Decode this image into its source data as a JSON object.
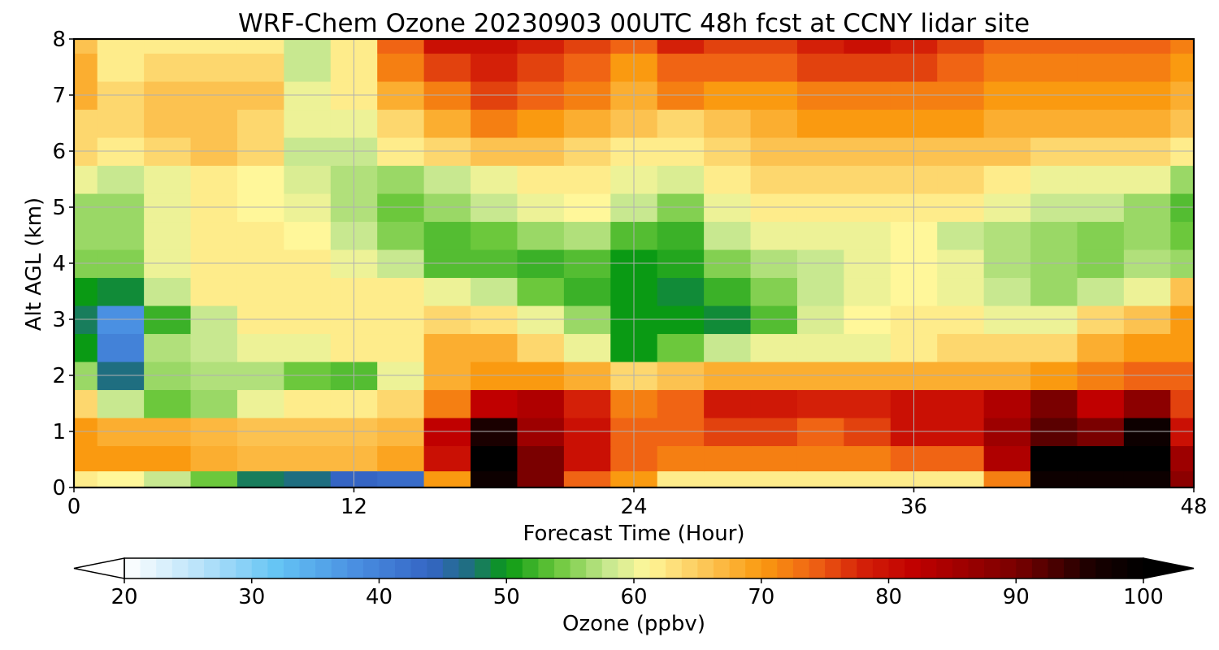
{
  "chart_data": {
    "type": "heatmap",
    "title": "WRF-Chem Ozone  20230903 00UTC 48h fcst at CCNY lidar site",
    "xlabel": "Forecast Time (Hour)",
    "ylabel": "Alt AGL (km)",
    "xlim": [
      0,
      48
    ],
    "ylim": [
      0,
      8
    ],
    "x_ticks": [
      0,
      12,
      24,
      36,
      48
    ],
    "y_ticks": [
      0,
      1,
      2,
      3,
      4,
      5,
      6,
      7,
      8
    ],
    "grid": true,
    "x": [
      0,
      2,
      4,
      6,
      8,
      10,
      12,
      14,
      16,
      18,
      20,
      22,
      24,
      26,
      28,
      30,
      32,
      34,
      36,
      38,
      40,
      42,
      44,
      46,
      48
    ],
    "y": [
      0.1,
      0.5,
      1,
      1.5,
      2,
      2.5,
      3,
      3.5,
      4,
      4.5,
      5,
      5.5,
      6,
      6.5,
      7,
      7.5,
      8
    ],
    "z": [
      [
        62,
        61,
        58,
        54,
        48,
        47,
        44,
        43,
        70,
        98,
        90,
        74,
        70,
        62,
        62,
        62,
        62,
        62,
        62,
        62,
        72,
        98,
        98,
        98,
        88
      ],
      [
        70,
        70,
        70,
        68,
        67,
        67,
        67,
        69,
        80,
        100,
        90,
        80,
        74,
        72,
        72,
        72,
        72,
        72,
        74,
        74,
        84,
        100,
        100,
        100,
        86
      ],
      [
        70,
        68,
        68,
        67,
        66,
        66,
        66,
        67,
        82,
        96,
        86,
        80,
        74,
        74,
        76,
        76,
        74,
        76,
        80,
        80,
        86,
        92,
        90,
        98,
        80
      ],
      [
        64,
        58,
        54,
        56,
        60,
        62,
        62,
        64,
        72,
        82,
        84,
        78,
        72,
        74,
        79,
        79,
        78,
        78,
        80,
        80,
        84,
        90,
        82,
        88,
        76
      ],
      [
        56,
        47,
        56,
        57,
        57,
        54,
        53,
        60,
        68,
        70,
        70,
        68,
        64,
        66,
        68,
        68,
        68,
        68,
        68,
        68,
        68,
        70,
        72,
        74,
        74
      ],
      [
        50,
        40,
        57,
        58,
        60,
        60,
        62,
        62,
        68,
        68,
        64,
        60,
        50,
        54,
        58,
        60,
        60,
        60,
        62,
        64,
        64,
        64,
        68,
        70,
        70
      ],
      [
        48,
        38,
        52,
        58,
        62,
        62,
        62,
        62,
        64,
        63,
        60,
        56,
        50,
        50,
        49,
        53,
        59,
        61,
        62,
        62,
        60,
        60,
        64,
        66,
        70
      ],
      [
        50,
        49,
        58,
        62,
        62,
        62,
        62,
        62,
        60,
        58,
        54,
        52,
        50,
        49,
        52,
        55,
        58,
        60,
        61,
        60,
        58,
        56,
        58,
        60,
        66
      ],
      [
        55,
        55,
        60,
        62,
        62,
        62,
        60,
        58,
        53,
        53,
        52,
        53,
        50,
        51,
        55,
        57,
        58,
        60,
        61,
        60,
        57,
        56,
        55,
        57,
        56
      ],
      [
        56,
        56,
        60,
        62,
        62,
        61,
        58,
        55,
        53,
        54,
        56,
        57,
        53,
        52,
        58,
        60,
        60,
        60,
        61,
        58,
        57,
        56,
        55,
        56,
        54
      ],
      [
        56,
        56,
        60,
        62,
        61,
        60,
        57,
        54,
        56,
        58,
        60,
        61,
        58,
        55,
        60,
        62,
        62,
        62,
        62,
        62,
        60,
        58,
        58,
        56,
        53
      ],
      [
        60,
        58,
        60,
        62,
        61,
        59,
        57,
        56,
        58,
        60,
        62,
        62,
        60,
        59,
        62,
        64,
        64,
        64,
        64,
        64,
        62,
        60,
        60,
        60,
        56
      ],
      [
        64,
        62,
        64,
        66,
        64,
        58,
        58,
        62,
        64,
        66,
        66,
        64,
        62,
        62,
        64,
        66,
        66,
        66,
        66,
        66,
        66,
        64,
        64,
        64,
        62
      ],
      [
        64,
        64,
        66,
        66,
        64,
        60,
        60,
        64,
        68,
        72,
        70,
        68,
        66,
        64,
        66,
        68,
        70,
        70,
        70,
        70,
        68,
        68,
        68,
        68,
        66
      ],
      [
        68,
        64,
        66,
        66,
        66,
        60,
        62,
        68,
        72,
        76,
        74,
        72,
        68,
        72,
        70,
        70,
        72,
        72,
        72,
        72,
        70,
        70,
        70,
        70,
        68
      ],
      [
        68,
        62,
        64,
        64,
        64,
        58,
        62,
        72,
        76,
        78,
        76,
        74,
        70,
        74,
        74,
        74,
        76,
        76,
        76,
        74,
        72,
        72,
        72,
        72,
        70
      ],
      [
        66,
        62,
        62,
        62,
        62,
        58,
        62,
        74,
        80,
        80,
        78,
        76,
        74,
        78,
        76,
        76,
        78,
        80,
        78,
        76,
        74,
        74,
        74,
        74,
        72
      ]
    ],
    "colorbar": {
      "label": "Ozone  (ppbv)",
      "range": [
        20,
        100
      ],
      "ticks": [
        20,
        30,
        40,
        50,
        60,
        70,
        80,
        90,
        100
      ],
      "extend": "both",
      "stops": [
        {
          "v": 20,
          "c": "#ffffff"
        },
        {
          "v": 26,
          "c": "#b8e2fa"
        },
        {
          "v": 32,
          "c": "#64c4f4"
        },
        {
          "v": 38,
          "c": "#4a90e2"
        },
        {
          "v": 44,
          "c": "#3565c4"
        },
        {
          "v": 47,
          "c": "#1f6e80"
        },
        {
          "v": 50,
          "c": "#0a9a14"
        },
        {
          "v": 54,
          "c": "#6cc83c"
        },
        {
          "v": 58,
          "c": "#c8e890"
        },
        {
          "v": 61,
          "c": "#fff79a"
        },
        {
          "v": 66,
          "c": "#fcc250"
        },
        {
          "v": 70,
          "c": "#fa9a10"
        },
        {
          "v": 74,
          "c": "#f06414"
        },
        {
          "v": 78,
          "c": "#d42008"
        },
        {
          "v": 82,
          "c": "#c00000"
        },
        {
          "v": 90,
          "c": "#7a0000"
        },
        {
          "v": 96,
          "c": "#1a0000"
        },
        {
          "v": 100,
          "c": "#000000"
        }
      ]
    }
  }
}
